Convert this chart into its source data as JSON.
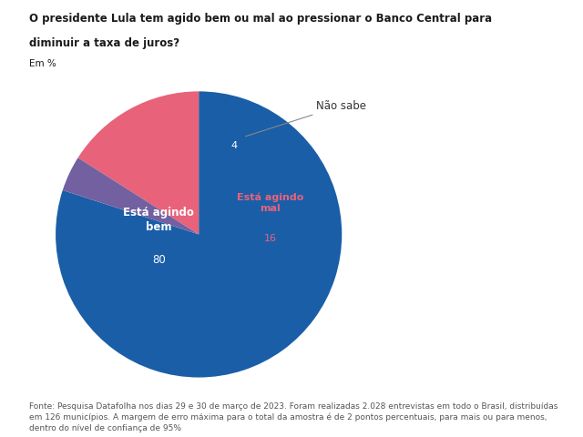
{
  "title_line1": "O presidente Lula tem agido bem ou mal ao pressionar o Banco Central para",
  "title_line2": "diminuir a taxa de juros?",
  "subtitle": "Em %",
  "slices": [
    80,
    16,
    4
  ],
  "colors": [
    "#1a5ea8",
    "#e8637a",
    "#7260a0"
  ],
  "startangle": 162,
  "footnote": "Fonte: Pesquisa Datafolha nos dias 29 e 30 de março de 2023. Foram realizadas 2.028 entrevistas em todo o Brasil, distribuídas\nem 126 municípios. A margem de erro máxima para o total da amostra é de 2 pontos percentuais, para mais ou para menos,\ndentro do nível de confiança de 95%",
  "bg_color": "#ffffff",
  "title_color": "#1a1a1a",
  "footnote_color": "#555555"
}
